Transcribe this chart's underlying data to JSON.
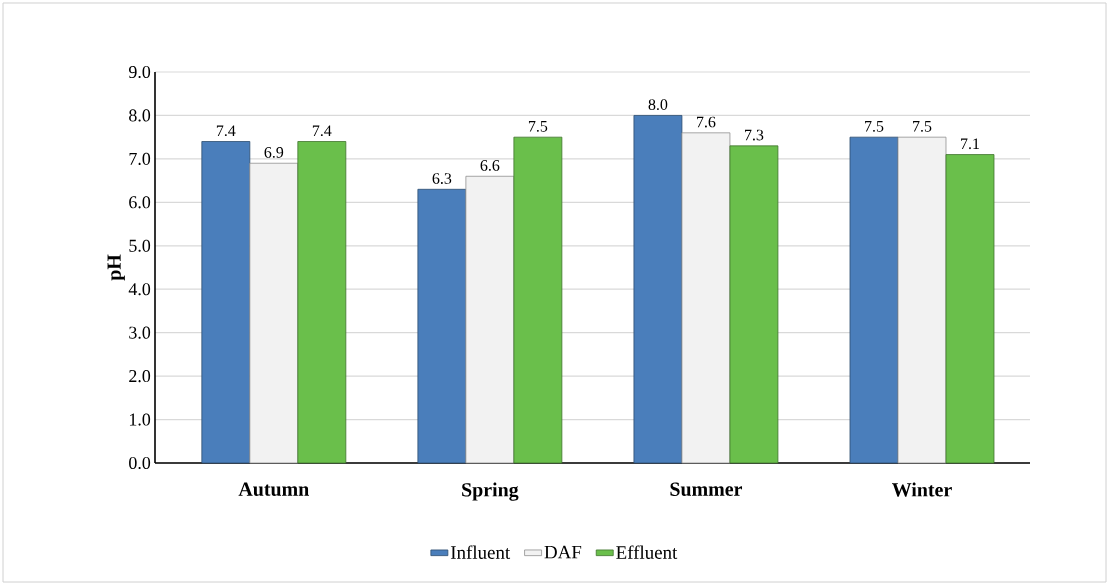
{
  "chart_data": {
    "type": "bar",
    "ylabel": "pH",
    "categories": [
      "Autumn",
      "Spring",
      "Summer",
      "Winter"
    ],
    "series": [
      {
        "name": "Influent",
        "color": "#4a7ebb",
        "values": [
          7.4,
          6.3,
          8.0,
          7.5
        ],
        "value_labels": [
          "7.4",
          "6.3",
          "8.0",
          "7.5"
        ]
      },
      {
        "name": "DAF",
        "color": "#f2f2f2",
        "values": [
          6.9,
          6.6,
          7.6,
          7.5
        ],
        "value_labels": [
          "6.9",
          "6.6",
          "7.6",
          "7.5"
        ]
      },
      {
        "name": "Effluent",
        "color": "#6abf4b",
        "values": [
          7.4,
          7.5,
          7.3,
          7.1
        ],
        "value_labels": [
          "7.4",
          "7.5",
          "7.3",
          "7.1"
        ]
      }
    ],
    "ylim": [
      0,
      9
    ],
    "yticks": [
      {
        "value": 0,
        "label": "0.0"
      },
      {
        "value": 1,
        "label": "1.0"
      },
      {
        "value": 2,
        "label": "2.0"
      },
      {
        "value": 3,
        "label": "3.0"
      },
      {
        "value": 4,
        "label": "4.0"
      },
      {
        "value": 5,
        "label": "5.0"
      },
      {
        "value": 6,
        "label": "6.0"
      },
      {
        "value": 7,
        "label": "7.0"
      },
      {
        "value": 8,
        "label": "8.0"
      },
      {
        "value": 9,
        "label": "9.0"
      }
    ],
    "grid": "y",
    "legend": "bottom"
  }
}
